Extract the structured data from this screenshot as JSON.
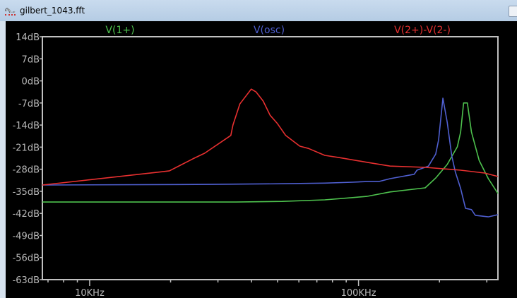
{
  "window": {
    "title": "gilbert_1043.fft",
    "icon": "waveform-icon"
  },
  "chart_data": {
    "type": "line",
    "xscale": "log",
    "xlim": [
      6.67,
      330
    ],
    "xunit": "KHz",
    "ylim": [
      -63,
      14
    ],
    "yunit": "dB",
    "grid": false,
    "legend_placement": "top",
    "yticks": [
      14,
      7,
      0,
      -7,
      -14,
      -21,
      -28,
      -35,
      -42,
      -49,
      -56,
      -63
    ],
    "ytick_labels": [
      "14dB",
      "7dB",
      "0dB",
      "-7dB",
      "-14dB",
      "-21dB",
      "-28dB",
      "-35dB",
      "-42dB",
      "-49dB",
      "-56dB",
      "-63dB"
    ],
    "xticks_major": [
      10,
      100
    ],
    "xtick_labels": [
      "10KHz",
      "100KHz"
    ],
    "xticks_minor": [
      7,
      8,
      9,
      20,
      30,
      40,
      50,
      60,
      70,
      80,
      90,
      200,
      300
    ],
    "series": [
      {
        "name": "V(1+)",
        "color": "#4ec24e",
        "points": [
          [
            6.67,
            -38.4
          ],
          [
            35,
            -38.4
          ],
          [
            52,
            -38.2
          ],
          [
            74.9,
            -37.7
          ],
          [
            95.1,
            -37.0
          ],
          [
            107.4,
            -36.6
          ],
          [
            131,
            -35.2
          ],
          [
            177,
            -33.9
          ],
          [
            193.7,
            -30.8
          ],
          [
            213.8,
            -26.5
          ],
          [
            233,
            -20.9
          ],
          [
            239.8,
            -16.2
          ],
          [
            246,
            -7.0
          ],
          [
            254,
            -7.0
          ],
          [
            263,
            -16.2
          ],
          [
            281,
            -25.2
          ],
          [
            304,
            -31.0
          ],
          [
            330,
            -35.7
          ]
        ]
      },
      {
        "name": "V(osc)",
        "color": "#4f5fd0",
        "points": [
          [
            6.67,
            -33.0
          ],
          [
            28.4,
            -32.8
          ],
          [
            52,
            -32.6
          ],
          [
            74.9,
            -32.4
          ],
          [
            95.1,
            -32.1
          ],
          [
            107.4,
            -31.9
          ],
          [
            118.9,
            -31.9
          ],
          [
            131,
            -31.0
          ],
          [
            161,
            -29.6
          ],
          [
            165,
            -28.3
          ],
          [
            182,
            -27.0
          ],
          [
            193.7,
            -23.2
          ],
          [
            198.6,
            -18.7
          ],
          [
            206,
            -5.5
          ],
          [
            213.8,
            -13.1
          ],
          [
            222,
            -23.6
          ],
          [
            229,
            -28.8
          ],
          [
            239.8,
            -34.1
          ],
          [
            250,
            -40.4
          ],
          [
            263,
            -40.8
          ],
          [
            272,
            -42.6
          ],
          [
            304,
            -43.1
          ],
          [
            330,
            -42.4
          ]
        ]
      },
      {
        "name": "V(2+)-V(2-)",
        "color": "#e83030",
        "points": [
          [
            6.67,
            -33.0
          ],
          [
            18.6,
            -28.8
          ],
          [
            19.8,
            -28.5
          ],
          [
            24.2,
            -24.7
          ],
          [
            26.8,
            -22.9
          ],
          [
            33.5,
            -17.3
          ],
          [
            34.1,
            -14.0
          ],
          [
            36.2,
            -7.3
          ],
          [
            39.9,
            -2.6
          ],
          [
            41.6,
            -3.5
          ],
          [
            44.2,
            -6.4
          ],
          [
            46.9,
            -10.9
          ],
          [
            49.9,
            -13.5
          ],
          [
            53.6,
            -17.3
          ],
          [
            60.5,
            -20.7
          ],
          [
            65.1,
            -21.4
          ],
          [
            74.9,
            -23.6
          ],
          [
            84.5,
            -24.3
          ],
          [
            107.4,
            -25.8
          ],
          [
            131,
            -27.0
          ],
          [
            177.7,
            -27.4
          ],
          [
            239.8,
            -28.3
          ],
          [
            294,
            -29.2
          ],
          [
            330,
            -30.3
          ]
        ]
      }
    ]
  }
}
